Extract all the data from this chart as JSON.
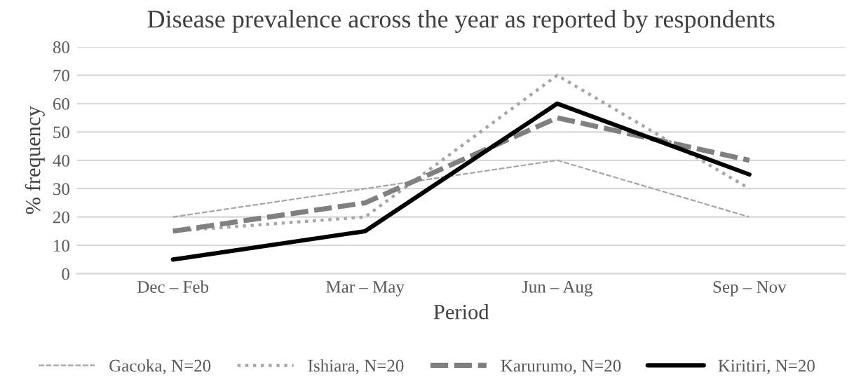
{
  "chart_data": {
    "type": "line",
    "title": "Disease prevalence across the year as reported by respondents",
    "xlabel": "Period",
    "ylabel": "% frequency",
    "categories": [
      "Dec – Feb",
      "Mar – May",
      "Jun – Aug",
      "Sep – Nov"
    ],
    "series": [
      {
        "name": "Gacoka, N=20",
        "color": "#a6a6a6",
        "line_style": "dashed",
        "values": [
          20,
          30,
          40,
          20
        ]
      },
      {
        "name": "Ishiara, N=20",
        "color": "#a6a6a6",
        "line_style": "dotted",
        "values": [
          15,
          20,
          70,
          30
        ]
      },
      {
        "name": "Karurumo, N=20",
        "color": "#808080",
        "line_style": "dashed",
        "values": [
          15,
          25,
          55,
          40
        ]
      },
      {
        "name": "Kiritiri, N=20",
        "color": "#000000",
        "line_style": "solid",
        "values": [
          5,
          15,
          60,
          35
        ]
      }
    ],
    "ylim": [
      0,
      80
    ],
    "yticks": [
      0,
      10,
      20,
      30,
      40,
      50,
      60,
      70,
      80
    ],
    "grid": "y",
    "legend": "bottom",
    "marker": "none"
  }
}
